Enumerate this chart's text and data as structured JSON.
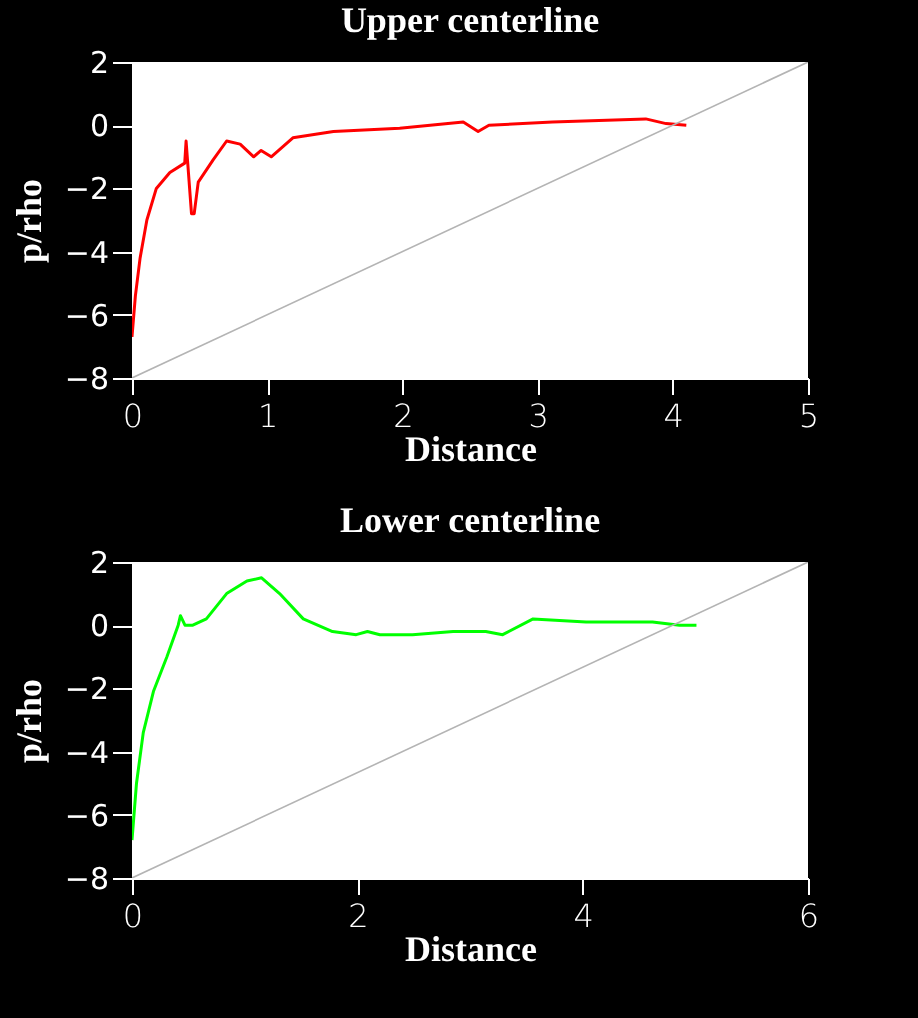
{
  "chart_data": [
    {
      "type": "line",
      "title": "Upper centerline",
      "xlabel": "Distance",
      "ylabel": "p/rho",
      "xlim": [
        0,
        5
      ],
      "ylim": [
        -8,
        2
      ],
      "xticks": [
        0,
        1,
        2,
        3,
        4,
        5
      ],
      "yticks": [
        -8,
        -6,
        -4,
        -2,
        0,
        2
      ],
      "series": [
        {
          "color": "#ff0000",
          "x": [
            0,
            0.025,
            0.06,
            0.11,
            0.18,
            0.28,
            0.39,
            0.4,
            0.44,
            0.46,
            0.49,
            0.6,
            0.7,
            0.8,
            0.9,
            0.955,
            1.03,
            1.19,
            1.49,
            1.98,
            2.45,
            2.56,
            2.64,
            3.11,
            3.8,
            3.95,
            4.1
          ],
          "values": [
            -6.7,
            -5.4,
            -4.2,
            -3.0,
            -2.0,
            -1.5,
            -1.2,
            -0.5,
            -2.8,
            -2.8,
            -1.8,
            -1.1,
            -0.5,
            -0.6,
            -1.0,
            -0.8,
            -1.0,
            -0.4,
            -0.2,
            -0.1,
            0.1,
            -0.2,
            0,
            0.1,
            0.2,
            0.05,
            0
          ]
        },
        {
          "type": "line",
          "color": "#b4b4b4",
          "x": [
            0,
            5
          ],
          "values": [
            -8,
            2
          ]
        }
      ]
    },
    {
      "type": "line",
      "title": "Lower centerline",
      "xlabel": "Distance",
      "ylabel": "p/rho",
      "xlim": [
        0,
        6
      ],
      "ylim": [
        -8,
        2
      ],
      "xticks": [
        0,
        2,
        4,
        6
      ],
      "yticks": [
        -8,
        -6,
        -4,
        -2,
        0,
        2
      ],
      "series": [
        {
          "color": "#00ff00",
          "x": [
            0,
            0.04,
            0.1,
            0.19,
            0.31,
            0.41,
            0.43,
            0.47,
            0.54,
            0.66,
            0.84,
            1.02,
            1.15,
            1.31,
            1.52,
            1.78,
            1.99,
            2.09,
            2.2,
            2.49,
            2.85,
            3.14,
            3.29,
            3.56,
            4.03,
            4.62,
            4.86,
            5.01
          ],
          "values": [
            -6.8,
            -5.0,
            -3.4,
            -2.1,
            -1.0,
            0,
            0.3,
            0,
            0,
            0.2,
            1.0,
            1.4,
            1.5,
            1.0,
            0.2,
            -0.2,
            -0.3,
            -0.2,
            -0.3,
            -0.3,
            -0.2,
            -0.2,
            -0.3,
            0.2,
            0.1,
            0.1,
            0,
            0
          ]
        },
        {
          "type": "line",
          "color": "#b4b4b4",
          "x": [
            0,
            6
          ],
          "values": [
            -8,
            2
          ]
        }
      ]
    }
  ]
}
